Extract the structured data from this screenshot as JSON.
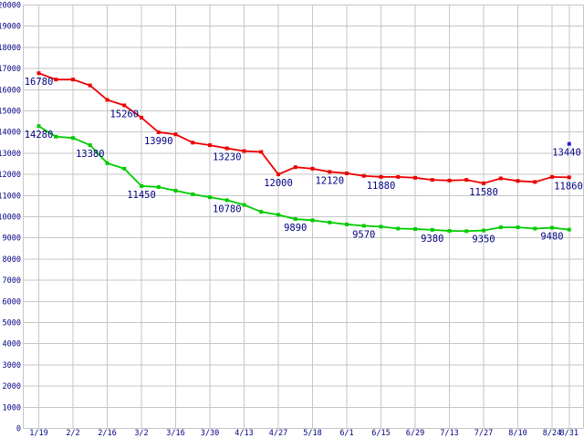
{
  "chart_data": {
    "type": "line",
    "title": "",
    "xlabel": "",
    "ylabel": "",
    "grid": true,
    "legend": "none",
    "y_axis": {
      "min": 0,
      "max": 20000,
      "step": 1000
    },
    "x_tick_labels": [
      {
        "label": "1/19",
        "slot": 0
      },
      {
        "label": "2/2",
        "slot": 2
      },
      {
        "label": "2/16",
        "slot": 4
      },
      {
        "label": "3/2",
        "slot": 6
      },
      {
        "label": "3/16",
        "slot": 8
      },
      {
        "label": "3/30",
        "slot": 10
      },
      {
        "label": "4/13",
        "slot": 12
      },
      {
        "label": "4/27",
        "slot": 14
      },
      {
        "label": "5/18",
        "slot": 16
      },
      {
        "label": "6/1",
        "slot": 18
      },
      {
        "label": "6/15",
        "slot": 20
      },
      {
        "label": "6/29",
        "slot": 22
      },
      {
        "label": "7/13",
        "slot": 24
      },
      {
        "label": "7/27",
        "slot": 26
      },
      {
        "label": "8/10",
        "slot": 28
      },
      {
        "label": "8/24",
        "slot": 30
      },
      {
        "label": "8/31",
        "slot": 31
      }
    ],
    "series": [
      {
        "name": "red-series",
        "color": "#ee0000",
        "values": [
          16780,
          16480,
          16480,
          16200,
          15520,
          15260,
          14680,
          13990,
          13890,
          13500,
          13380,
          13230,
          13100,
          13060,
          12000,
          12340,
          12270,
          12120,
          12050,
          11930,
          11880,
          11880,
          11840,
          11740,
          11710,
          11740,
          11580,
          11810,
          11690,
          11640,
          11880,
          11860
        ],
        "label_indices": [
          0,
          5,
          7,
          11,
          14,
          17,
          20,
          26,
          31
        ],
        "point_labels": [
          "16780",
          "15260",
          "13990",
          "13230",
          "12000",
          "12120",
          "11880",
          "11580",
          "11860"
        ]
      },
      {
        "name": "green-series",
        "color": "#00cc00",
        "values": [
          14280,
          13780,
          13720,
          13380,
          12530,
          12270,
          11450,
          11400,
          11230,
          11060,
          10920,
          10780,
          10560,
          10230,
          10090,
          9890,
          9830,
          9730,
          9640,
          9570,
          9530,
          9440,
          9420,
          9380,
          9330,
          9320,
          9350,
          9500,
          9500,
          9440,
          9480,
          9390
        ],
        "label_indices": [
          0,
          3,
          6,
          11,
          15,
          19,
          23,
          26,
          30
        ],
        "point_labels": [
          "14280",
          "13380",
          "11450",
          "10780",
          "9890",
          "9570",
          "9380",
          "9350",
          "9480"
        ]
      }
    ],
    "isolated_point": {
      "name": "blue-point",
      "color": "#2222cc",
      "slot": 31,
      "value": 13440,
      "label": "13440"
    }
  },
  "colors": {
    "background": "#ffffff",
    "grid": "#c6c6c6",
    "axis_text": "#000080",
    "data_label_text": "#000080"
  }
}
